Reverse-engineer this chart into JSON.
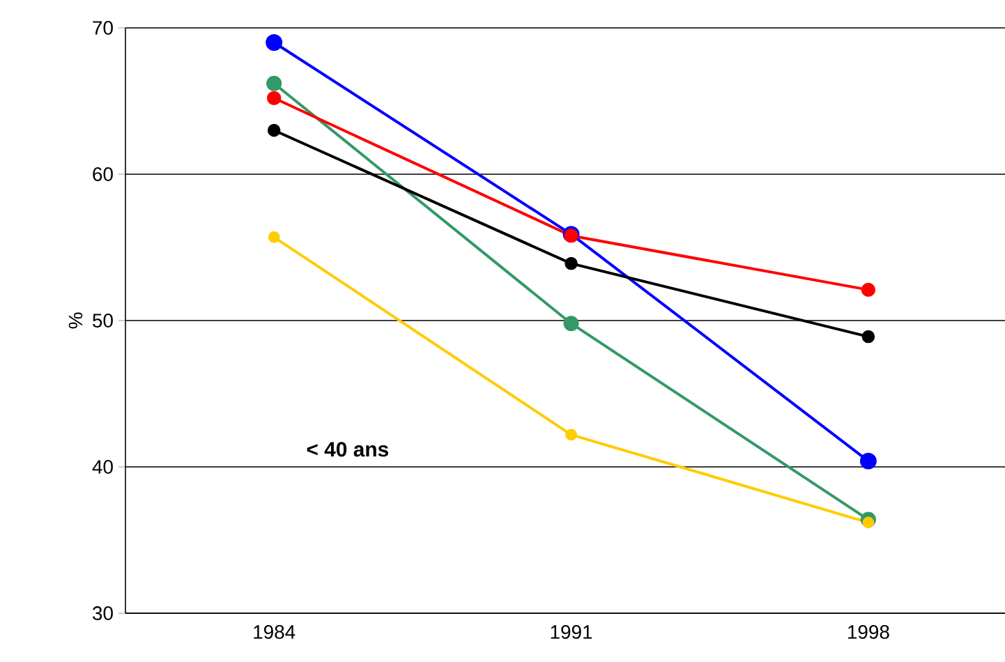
{
  "chart_data": {
    "type": "line",
    "ylabel": "%",
    "categories": [
      "1984",
      "1991",
      "1998"
    ],
    "series": [
      {
        "color": "#0000ff",
        "values": [
          69.0,
          55.9,
          40.4
        ]
      },
      {
        "color": "#339966",
        "values": [
          66.2,
          49.8,
          36.4
        ]
      },
      {
        "color": "#ff0000",
        "values": [
          65.2,
          55.8,
          52.1
        ]
      },
      {
        "color": "#000000",
        "values": [
          63.0,
          53.9,
          48.9
        ]
      },
      {
        "color": "#ffcc00",
        "values": [
          55.7,
          42.2,
          36.2
        ]
      }
    ],
    "ylim": [
      30,
      70
    ],
    "yticks": [
      30,
      40,
      50,
      60,
      70
    ],
    "grid": "y",
    "marker": "circle",
    "line_style": "solid",
    "annotations": [
      "< 40 ans"
    ]
  }
}
